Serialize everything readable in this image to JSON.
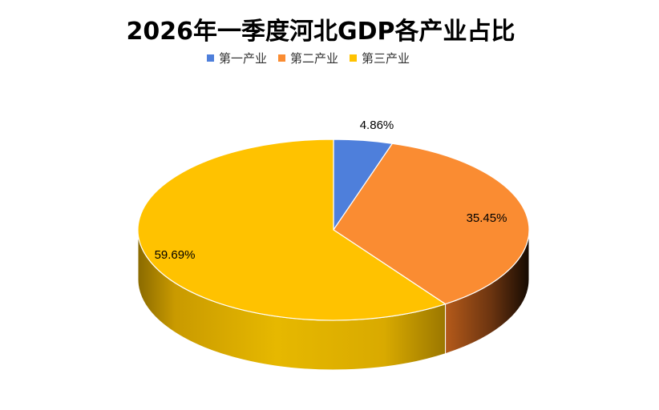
{
  "chart_data": {
    "type": "pie",
    "title": "2026年一季度河北GDP各产业占比",
    "legend_position": "top",
    "categories": [
      "第一产业",
      "第二产业",
      "第三产业"
    ],
    "values": [
      4.86,
      35.45,
      59.69
    ],
    "labels": [
      "4.86%",
      "35.45%",
      "59.69%"
    ],
    "colors": [
      "#4E7FDB",
      "#FA8C32",
      "#FFC200"
    ]
  }
}
